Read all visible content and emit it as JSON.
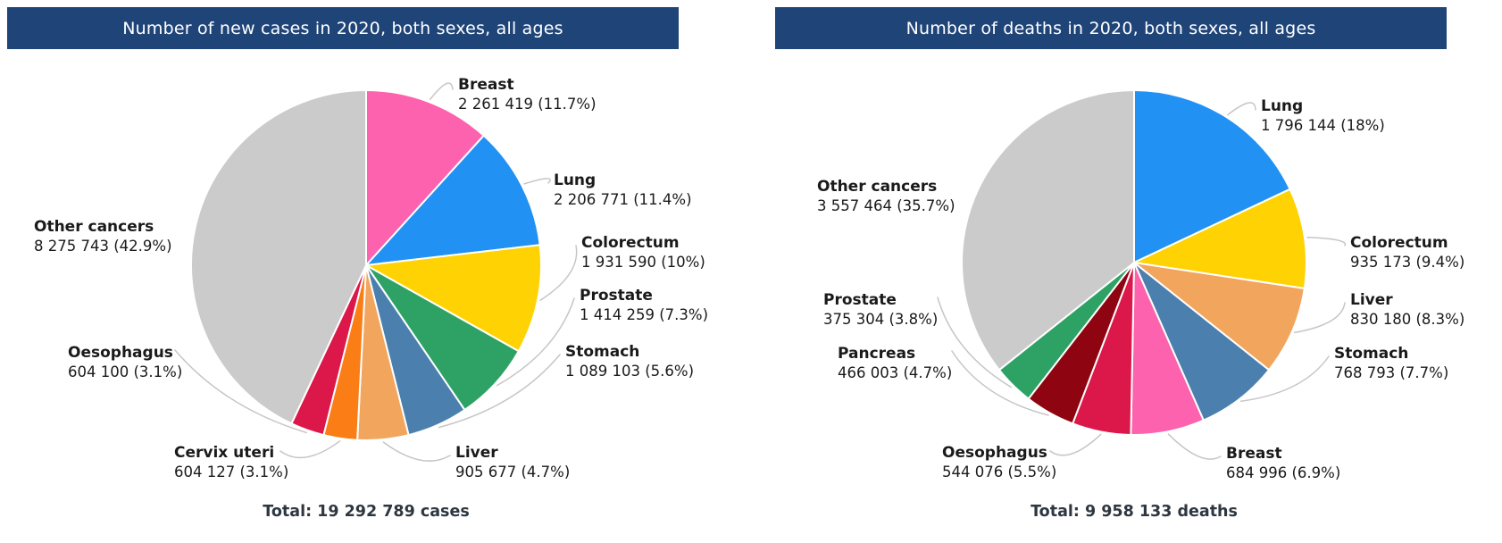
{
  "chart_data": [
    {
      "type": "pie",
      "title": "Number of new cases in 2020, both sexes, all ages",
      "total_label": "Total: 19 292 789 cases",
      "total_value": 19292789,
      "unit": "cases",
      "legend_position": "around",
      "slices": [
        {
          "label": "Breast",
          "value": 2261419,
          "pct": 11.7,
          "display": "2 261 419 (11.7%)",
          "color": "#FC62AD"
        },
        {
          "label": "Lung",
          "value": 2206771,
          "pct": 11.4,
          "display": "2 206 771 (11.4%)",
          "color": "#2191F3"
        },
        {
          "label": "Colorectum",
          "value": 1931590,
          "pct": 10.0,
          "display": "1 931 590 (10%)",
          "color": "#FFD204"
        },
        {
          "label": "Prostate",
          "value": 1414259,
          "pct": 7.3,
          "display": "1 414 259 (7.3%)",
          "color": "#2EA265"
        },
        {
          "label": "Stomach",
          "value": 1089103,
          "pct": 5.6,
          "display": "1 089 103 (5.6%)",
          "color": "#4B80AE"
        },
        {
          "label": "Liver",
          "value": 905677,
          "pct": 4.7,
          "display": "905 677 (4.7%)",
          "color": "#F2A55C"
        },
        {
          "label": "Cervix uteri",
          "value": 604127,
          "pct": 3.1,
          "display": "604 127 (3.1%)",
          "color": "#FB7D16"
        },
        {
          "label": "Oesophagus",
          "value": 604100,
          "pct": 3.1,
          "display": "604 100 (3.1%)",
          "color": "#DC1749"
        },
        {
          "label": "Other cancers",
          "value": 8275743,
          "pct": 42.9,
          "display": "8 275 743 (42.9%)",
          "color": "#CBCBCB"
        }
      ]
    },
    {
      "type": "pie",
      "title": "Number of deaths in 2020, both sexes, all ages",
      "total_label": "Total: 9 958 133 deaths",
      "total_value": 9958133,
      "unit": "deaths",
      "legend_position": "around",
      "slices": [
        {
          "label": "Lung",
          "value": 1796144,
          "pct": 18.0,
          "display": "1 796 144 (18%)",
          "color": "#2191F3"
        },
        {
          "label": "Colorectum",
          "value": 935173,
          "pct": 9.4,
          "display": "935 173 (9.4%)",
          "color": "#FFD204"
        },
        {
          "label": "Liver",
          "value": 830180,
          "pct": 8.3,
          "display": "830 180 (8.3%)",
          "color": "#F2A55C"
        },
        {
          "label": "Stomach",
          "value": 768793,
          "pct": 7.7,
          "display": "768 793 (7.7%)",
          "color": "#4B80AE"
        },
        {
          "label": "Breast",
          "value": 684996,
          "pct": 6.9,
          "display": "684 996 (6.9%)",
          "color": "#FC62AD"
        },
        {
          "label": "Oesophagus",
          "value": 544076,
          "pct": 5.5,
          "display": "544 076 (5.5%)",
          "color": "#DC1749"
        },
        {
          "label": "Pancreas",
          "value": 466003,
          "pct": 4.7,
          "display": "466 003 (4.7%)",
          "color": "#8E0511"
        },
        {
          "label": "Prostate",
          "value": 375304,
          "pct": 3.8,
          "display": "375 304 (3.8%)",
          "color": "#2EA265"
        },
        {
          "label": "Other cancers",
          "value": 3557464,
          "pct": 35.7,
          "display": "3 557 464 (35.7%)",
          "color": "#CBCBCB"
        }
      ]
    }
  ]
}
